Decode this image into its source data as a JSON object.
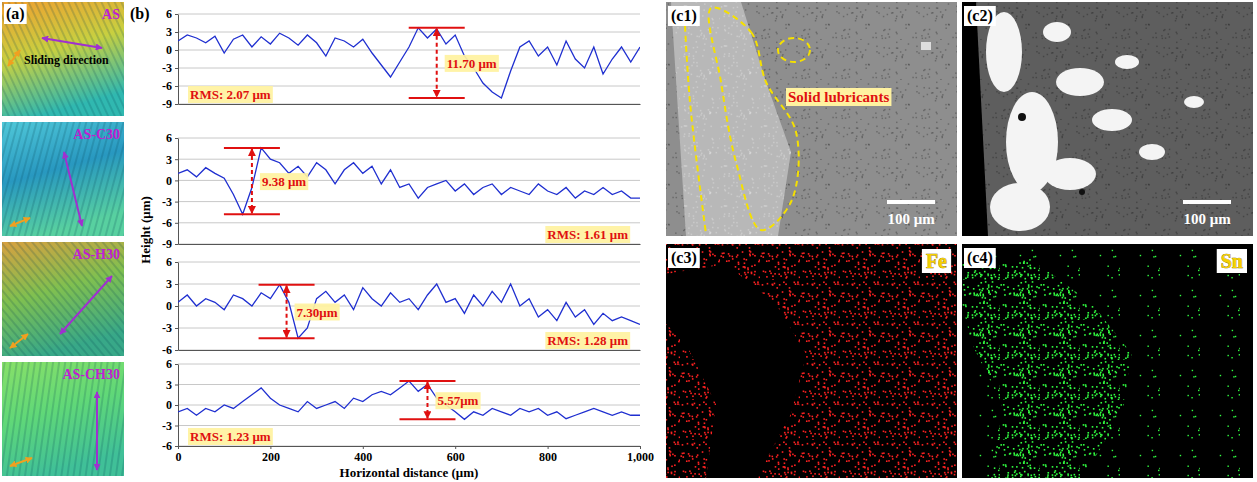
{
  "chart_data": [
    {
      "type": "line",
      "color": "#1f2fd0",
      "grid": true,
      "tick_labels": "y",
      "xlim": [
        0,
        1000
      ],
      "ylim": [
        -9,
        6
      ],
      "yticks": [
        -9,
        -6,
        -3,
        0,
        3,
        6
      ],
      "x": [
        0,
        20,
        40,
        60,
        80,
        100,
        120,
        140,
        160,
        180,
        200,
        220,
        240,
        260,
        280,
        300,
        320,
        340,
        360,
        380,
        400,
        420,
        440,
        460,
        480,
        500,
        520,
        540,
        560,
        580,
        600,
        620,
        640,
        660,
        680,
        700,
        720,
        740,
        760,
        780,
        800,
        820,
        840,
        860,
        880,
        900,
        920,
        940,
        960,
        980,
        1000
      ],
      "values": [
        1.5,
        2.5,
        2.0,
        1.2,
        2.3,
        -0.5,
        1.8,
        2.5,
        0.5,
        2.2,
        1.0,
        2.8,
        2.0,
        0.8,
        2.5,
        1.2,
        -1.0,
        2.0,
        1.5,
        0.5,
        1.8,
        -0.5,
        -2.5,
        -4.5,
        -2.0,
        0.5,
        3.7,
        2.0,
        3.5,
        1.0,
        2.5,
        -1.0,
        -3.0,
        -5.5,
        -7.0,
        -8.0,
        -3.5,
        0.5,
        1.5,
        -1.0,
        0.5,
        -2.5,
        1.5,
        -1.5,
        -3.0,
        0.5,
        -4.0,
        -1.5,
        0.5,
        -2.0,
        0.5
      ],
      "annotations": [
        {
          "text": "RMS: 2.07 μm"
        },
        {
          "text": "11.70 μm",
          "x": 560,
          "y_top": 3.7,
          "y_bottom": -8.0
        }
      ]
    },
    {
      "type": "line",
      "color": "#1f2fd0",
      "grid": true,
      "tick_labels": "y",
      "xlim": [
        0,
        1000
      ],
      "ylim": [
        -9,
        6
      ],
      "yticks": [
        -9,
        -6,
        -3,
        0,
        3,
        6
      ],
      "x": [
        0,
        20,
        40,
        60,
        80,
        100,
        120,
        140,
        160,
        180,
        200,
        220,
        240,
        260,
        280,
        300,
        320,
        340,
        360,
        380,
        400,
        420,
        440,
        460,
        480,
        500,
        520,
        540,
        560,
        580,
        600,
        620,
        640,
        660,
        680,
        700,
        720,
        740,
        760,
        780,
        800,
        820,
        840,
        860,
        880,
        900,
        920,
        940,
        960,
        980,
        1000
      ],
      "values": [
        1.0,
        1.5,
        0.5,
        1.8,
        1.0,
        0.3,
        -2.0,
        -4.8,
        -1.0,
        4.6,
        3.0,
        2.5,
        1.0,
        2.0,
        0.5,
        2.5,
        1.5,
        -0.5,
        1.5,
        2.5,
        1.0,
        2.0,
        -0.5,
        1.5,
        -1.0,
        -0.5,
        -2.5,
        -1.0,
        -0.5,
        0.0,
        -1.5,
        -0.5,
        -2.0,
        -1.0,
        -0.5,
        -2.0,
        -1.0,
        -1.5,
        -2.0,
        -0.5,
        -1.5,
        -2.0,
        -1.0,
        -2.5,
        -1.5,
        -2.0,
        -1.0,
        -2.0,
        -1.5,
        -2.5,
        -2.5
      ],
      "annotations": [
        {
          "text": "RMS: 1.61 μm"
        },
        {
          "text": "9.38 μm",
          "x": 160,
          "y_top": 4.6,
          "y_bottom": -4.8
        }
      ]
    },
    {
      "type": "line",
      "color": "#1f2fd0",
      "grid": true,
      "tick_labels": "y",
      "xlim": [
        0,
        1000
      ],
      "ylim": [
        -6,
        6
      ],
      "yticks": [
        -6,
        -3,
        0,
        3,
        6
      ],
      "x": [
        0,
        20,
        40,
        60,
        80,
        100,
        120,
        140,
        160,
        180,
        200,
        220,
        240,
        260,
        280,
        300,
        320,
        340,
        360,
        380,
        400,
        420,
        440,
        460,
        480,
        500,
        520,
        540,
        560,
        580,
        600,
        620,
        640,
        660,
        680,
        700,
        720,
        740,
        760,
        780,
        800,
        820,
        840,
        860,
        880,
        900,
        920,
        940,
        960,
        980,
        1000
      ],
      "values": [
        0.5,
        1.5,
        0.0,
        1.0,
        0.5,
        -0.5,
        1.5,
        1.0,
        0.0,
        1.8,
        1.0,
        2.9,
        0.5,
        -4.4,
        -3.0,
        1.0,
        2.0,
        0.5,
        1.5,
        -0.5,
        2.5,
        1.0,
        0.0,
        1.8,
        0.5,
        1.0,
        -0.5,
        1.5,
        3.0,
        0.5,
        1.0,
        -1.0,
        1.5,
        0.0,
        2.0,
        0.5,
        3.0,
        0.0,
        1.0,
        -1.5,
        -0.5,
        -2.0,
        0.5,
        -1.5,
        -0.5,
        -2.5,
        -1.0,
        -2.0,
        -1.5,
        -2.0,
        -2.5
      ],
      "annotations": [
        {
          "text": "RMS: 1.28 μm"
        },
        {
          "text": "7.30μm",
          "x": 235,
          "y_top": 2.9,
          "y_bottom": -4.4
        }
      ]
    },
    {
      "type": "line",
      "color": "#1f2fd0",
      "grid": true,
      "xlim": [
        0,
        1000
      ],
      "ylim": [
        -6,
        6
      ],
      "yticks": [
        -6,
        -3,
        0,
        3,
        6
      ],
      "xticks": [
        0,
        200,
        400,
        600,
        800,
        {
          "value": 1000,
          "label": "1,000"
        }
      ],
      "x": [
        0,
        20,
        40,
        60,
        80,
        100,
        120,
        140,
        160,
        180,
        200,
        220,
        240,
        260,
        280,
        300,
        320,
        340,
        360,
        380,
        400,
        420,
        440,
        460,
        480,
        500,
        520,
        540,
        560,
        580,
        600,
        620,
        640,
        660,
        680,
        700,
        720,
        740,
        760,
        780,
        800,
        820,
        840,
        860,
        880,
        900,
        920,
        940,
        960,
        980,
        1000
      ],
      "values": [
        -1.0,
        -0.5,
        -1.5,
        -0.5,
        -1.0,
        0.0,
        -0.5,
        0.5,
        1.5,
        2.5,
        1.0,
        0.0,
        -0.5,
        -1.0,
        0.5,
        -0.5,
        0.0,
        0.5,
        -0.5,
        1.0,
        0.5,
        1.5,
        2.0,
        1.5,
        2.5,
        3.5,
        2.0,
        3.0,
        1.0,
        0.0,
        -1.0,
        -2.1,
        -1.0,
        -1.5,
        -0.5,
        -1.0,
        -1.5,
        -0.5,
        -1.0,
        -0.5,
        -1.5,
        -1.0,
        -2.0,
        -1.5,
        -1.0,
        -0.5,
        -1.0,
        -1.5,
        -1.0,
        -1.5,
        -1.5
      ],
      "annotations": [
        {
          "text": "RMS: 1.23 μm"
        },
        {
          "text": "5.57μm",
          "x": 540,
          "y_top": 3.5,
          "y_bottom": -2.1
        }
      ]
    }
  ],
  "figure": {
    "label": "(b)",
    "y_label": "Height (μm)",
    "x_label": "Horizontal distance (μm)"
  },
  "panel_a": {
    "label": "(a)",
    "note": "Sliding direction",
    "images": [
      {
        "label": "AS"
      },
      {
        "label": "AS-C30"
      },
      {
        "label": "AS-H30"
      },
      {
        "label": "AS-CH30"
      }
    ]
  },
  "panel_c": [
    {
      "label": "(c1)",
      "annotation": "Solid lubricants",
      "scale_bar": "100 μm"
    },
    {
      "label": "(c2)",
      "scale_bar": "100 μm"
    },
    {
      "label": "(c3)",
      "element": "Fe"
    },
    {
      "label": "(c4)",
      "element": "Sn"
    }
  ]
}
